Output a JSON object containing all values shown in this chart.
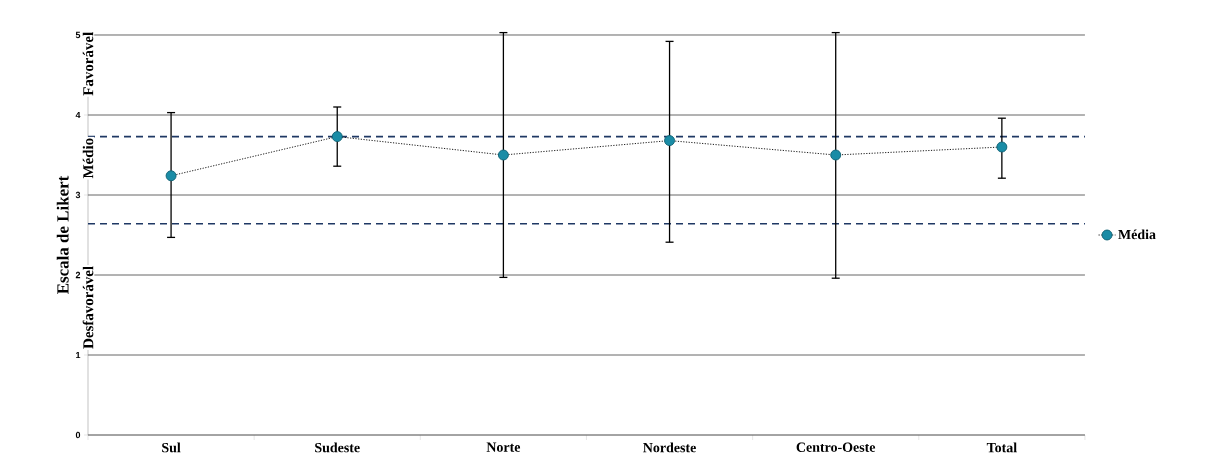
{
  "chart_data": {
    "type": "line",
    "ylabel": "Escala de Likert",
    "categories": [
      "Sul",
      "Sudeste",
      "Norte",
      "Nordeste",
      "Centro-Oeste",
      "Total"
    ],
    "series": [
      {
        "name": "Média",
        "color": "#1a8ca6",
        "values": [
          3.24,
          3.73,
          3.5,
          3.68,
          3.5,
          3.6
        ],
        "errors": [
          [
            2.47,
            4.03
          ],
          [
            3.36,
            4.1
          ],
          [
            1.97,
            5.03
          ],
          [
            2.41,
            4.92
          ],
          [
            1.96,
            5.03
          ],
          [
            3.21,
            3.96
          ]
        ]
      }
    ],
    "ylim": [
      0,
      5
    ],
    "yticks": [
      0,
      1,
      2,
      3,
      4,
      5
    ],
    "grid": "y",
    "legend": "right",
    "marker": "circle",
    "line_style": "dotted",
    "ref_lines": [
      {
        "axis": "y",
        "value": 3.73,
        "color": "#1f3864",
        "line_style": "dashed"
      },
      {
        "axis": "y",
        "value": 2.64,
        "color": "#1f3864",
        "line_style": "dashed"
      }
    ],
    "annotations": [
      "Favorável",
      "Médio",
      "Desfavorável"
    ]
  }
}
